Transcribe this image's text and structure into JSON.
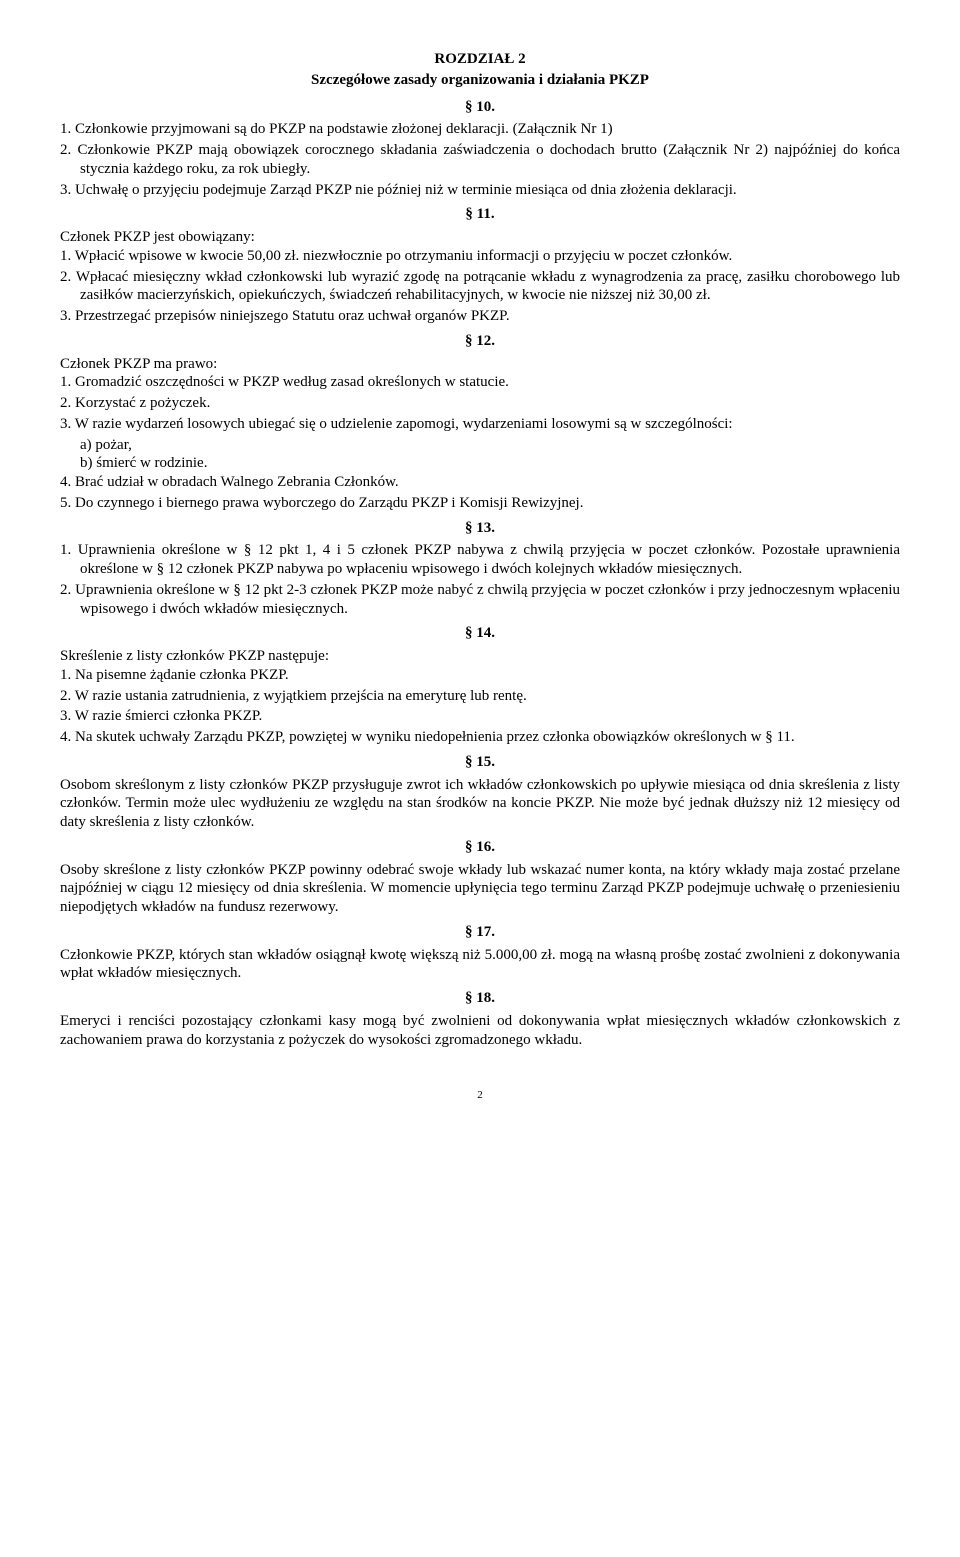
{
  "chapter": {
    "title": "ROZDZIAŁ 2",
    "subtitle": "Szczegółowe zasady organizowania i działania PKZP"
  },
  "s10": {
    "num": "§ 10.",
    "i1": "1. Członkowie przyjmowani są do PKZP na podstawie złożonej deklaracji. (Załącznik Nr 1)",
    "i2": "2. Członkowie PKZP mają obowiązek corocznego składania zaświadczenia o dochodach brutto (Załącznik Nr 2) najpóźniej do końca stycznia każdego roku, za rok ubiegły.",
    "i3": "3. Uchwałę o przyjęciu podejmuje Zarząd PKZP nie później niż w terminie miesiąca od dnia złożenia deklaracji."
  },
  "s11": {
    "num": "§ 11.",
    "intro": "Członek PKZP jest obowiązany:",
    "i1": "1. Wpłacić wpisowe w kwocie 50,00 zł. niezwłocznie po otrzymaniu informacji o przyjęciu w poczet członków.",
    "i2": "2. Wpłacać miesięczny wkład członkowski lub wyrazić zgodę na potrącanie wkładu z wynagrodzenia za pracę, zasiłku chorobowego lub zasiłków macierzyńskich, opiekuńczych, świadczeń rehabilitacyjnych, w kwocie nie niższej niż 30,00 zł.",
    "i3": "3. Przestrzegać przepisów niniejszego Statutu oraz uchwał organów PKZP."
  },
  "s12": {
    "num": "§ 12.",
    "intro": "Członek PKZP ma prawo:",
    "i1": "1. Gromadzić oszczędności w PKZP według zasad określonych w statucie.",
    "i2": "2. Korzystać z pożyczek.",
    "i3": "3. W razie wydarzeń losowych ubiegać się o udzielenie zapomogi, wydarzeniami losowymi są w szczególności:",
    "i3a": "a) pożar,",
    "i3b": "b) śmierć w rodzinie.",
    "i4": "4. Brać udział w obradach Walnego Zebrania Członków.",
    "i5": "5. Do czynnego i biernego prawa wyborczego do Zarządu PKZP i Komisji Rewizyjnej."
  },
  "s13": {
    "num": "§ 13.",
    "i1": "1. Uprawnienia określone w § 12 pkt 1, 4 i 5 członek PKZP nabywa z chwilą przyjęcia w poczet członków. Pozostałe uprawnienia określone w § 12 członek PKZP nabywa po wpłaceniu wpisowego i dwóch kolejnych wkładów miesięcznych.",
    "i2": "2. Uprawnienia określone w § 12 pkt 2-3 członek PKZP może nabyć z chwilą przyjęcia w poczet członków i przy jednoczesnym wpłaceniu wpisowego i dwóch wkładów miesięcznych."
  },
  "s14": {
    "num": "§ 14.",
    "intro": "Skreślenie z listy członków PKZP następuje:",
    "i1": "1. Na pisemne żądanie członka PKZP.",
    "i2": "2. W razie ustania zatrudnienia, z wyjątkiem przejścia na emeryturę lub rentę.",
    "i3": "3. W razie śmierci członka PKZP.",
    "i4": "4. Na skutek uchwały Zarządu PKZP, powziętej w wyniku niedopełnienia przez członka obowiązków określonych w § 11."
  },
  "s15": {
    "num": "§ 15.",
    "p": "Osobom skreślonym z listy członków PKZP przysługuje zwrot ich wkładów członkowskich po upływie miesiąca od dnia skreślenia z listy członków. Termin może ulec wydłużeniu ze względu na stan środków na koncie PKZP. Nie może być jednak dłuższy niż 12 miesięcy od daty skreślenia z listy członków."
  },
  "s16": {
    "num": "§ 16.",
    "p": "Osoby skreślone z listy członków PKZP powinny odebrać swoje wkłady lub wskazać numer konta, na który wkłady maja zostać przelane najpóźniej w ciągu 12 miesięcy od dnia skreślenia. W momencie upłynięcia tego terminu Zarząd PKZP podejmuje uchwałę o przeniesieniu niepodjętych wkładów na fundusz rezerwowy."
  },
  "s17": {
    "num": "§ 17.",
    "p": "Członkowie PKZP, których stan wkładów osiągnął kwotę większą niż 5.000,00 zł. mogą na własną prośbę zostać zwolnieni z dokonywania wpłat wkładów miesięcznych."
  },
  "s18": {
    "num": "§ 18.",
    "p": "Emeryci i renciści pozostający członkami kasy mogą być zwolnieni od dokonywania wpłat  miesięcznych wkładów członkowskich z zachowaniem prawa do korzystania z pożyczek do wysokości zgromadzonego wkładu."
  },
  "pageNumber": "2"
}
